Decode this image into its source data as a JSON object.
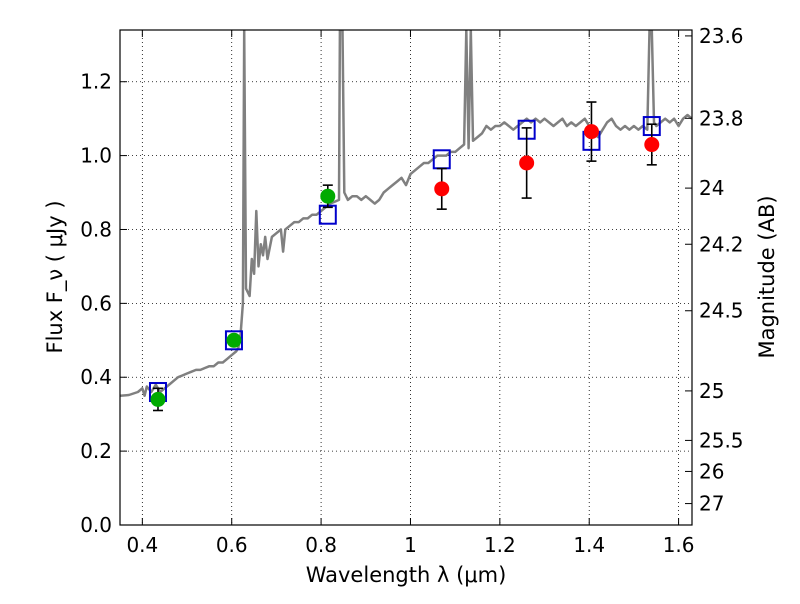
{
  "chart_data": {
    "type": "scatter",
    "xlabel": "Wavelength  λ (μm)",
    "ylabel": "Flux  F_ν  ( μJy )",
    "ylabel_right": "Magnitude (AB)",
    "xlim": [
      0.35,
      1.63
    ],
    "ylim": [
      0.0,
      1.34
    ],
    "grid": true,
    "x_ticks": [
      0.4,
      0.6,
      0.8,
      1.0,
      1.2,
      1.4,
      1.6
    ],
    "x_tick_labels": [
      "0.4",
      "0.6",
      "0.8",
      "1",
      "1.2",
      "1.4",
      "1.6"
    ],
    "y_ticks": [
      0.0,
      0.2,
      0.4,
      0.6,
      0.8,
      1.0,
      1.2
    ],
    "y_tick_labels": [
      "0.0",
      "0.2",
      "0.4",
      "0.6",
      "0.8",
      "1.0",
      "1.2"
    ],
    "right_ticks": [
      {
        "label": "23.6",
        "flux": 1.324
      },
      {
        "label": "23.8",
        "flux": 1.101
      },
      {
        "label": "24",
        "flux": 0.912
      },
      {
        "label": "24.2",
        "flux": 0.76
      },
      {
        "label": "24.5",
        "flux": 0.58
      },
      {
        "label": "25",
        "flux": 0.363
      },
      {
        "label": "25.5",
        "flux": 0.229
      },
      {
        "label": "26",
        "flux": 0.145
      },
      {
        "label": "27",
        "flux": 0.058
      }
    ],
    "series": [
      {
        "kind": "line",
        "color": "#808080",
        "points": [
          [
            0.35,
            0.35
          ],
          [
            0.37,
            0.352
          ],
          [
            0.39,
            0.36
          ],
          [
            0.4,
            0.37
          ],
          [
            0.405,
            0.35
          ],
          [
            0.41,
            0.375
          ],
          [
            0.42,
            0.36
          ],
          [
            0.43,
            0.38
          ],
          [
            0.44,
            0.36
          ],
          [
            0.45,
            0.37
          ],
          [
            0.46,
            0.38
          ],
          [
            0.47,
            0.39
          ],
          [
            0.48,
            0.4
          ],
          [
            0.49,
            0.405
          ],
          [
            0.5,
            0.41
          ],
          [
            0.51,
            0.415
          ],
          [
            0.52,
            0.42
          ],
          [
            0.53,
            0.42
          ],
          [
            0.54,
            0.425
          ],
          [
            0.55,
            0.43
          ],
          [
            0.56,
            0.43
          ],
          [
            0.57,
            0.44
          ],
          [
            0.58,
            0.44
          ],
          [
            0.59,
            0.45
          ],
          [
            0.6,
            0.46
          ],
          [
            0.61,
            0.47
          ],
          [
            0.615,
            0.48
          ],
          [
            0.62,
            0.52
          ],
          [
            0.625,
            0.6
          ],
          [
            0.628,
            1.34
          ],
          [
            0.632,
            0.64
          ],
          [
            0.64,
            0.62
          ],
          [
            0.645,
            0.72
          ],
          [
            0.65,
            0.68
          ],
          [
            0.655,
            0.85
          ],
          [
            0.66,
            0.7
          ],
          [
            0.665,
            0.76
          ],
          [
            0.67,
            0.73
          ],
          [
            0.675,
            0.78
          ],
          [
            0.68,
            0.72
          ],
          [
            0.69,
            0.78
          ],
          [
            0.7,
            0.79
          ],
          [
            0.71,
            0.8
          ],
          [
            0.715,
            0.74
          ],
          [
            0.72,
            0.8
          ],
          [
            0.73,
            0.81
          ],
          [
            0.74,
            0.82
          ],
          [
            0.75,
            0.82
          ],
          [
            0.76,
            0.83
          ],
          [
            0.77,
            0.83
          ],
          [
            0.78,
            0.84
          ],
          [
            0.79,
            0.84
          ],
          [
            0.8,
            0.85
          ],
          [
            0.81,
            0.86
          ],
          [
            0.82,
            0.87
          ],
          [
            0.83,
            0.875
          ],
          [
            0.84,
            0.88
          ],
          [
            0.842,
            1.34
          ],
          [
            0.848,
            1.34
          ],
          [
            0.852,
            0.9
          ],
          [
            0.86,
            0.88
          ],
          [
            0.87,
            0.89
          ],
          [
            0.88,
            0.89
          ],
          [
            0.89,
            0.88
          ],
          [
            0.9,
            0.89
          ],
          [
            0.91,
            0.88
          ],
          [
            0.92,
            0.87
          ],
          [
            0.93,
            0.88
          ],
          [
            0.94,
            0.9
          ],
          [
            0.95,
            0.91
          ],
          [
            0.96,
            0.92
          ],
          [
            0.97,
            0.93
          ],
          [
            0.98,
            0.94
          ],
          [
            0.99,
            0.92
          ],
          [
            1.0,
            0.95
          ],
          [
            1.01,
            0.96
          ],
          [
            1.02,
            0.97
          ],
          [
            1.03,
            0.98
          ],
          [
            1.04,
            0.98
          ],
          [
            1.05,
            0.99
          ],
          [
            1.06,
            1.0
          ],
          [
            1.07,
            1.0
          ],
          [
            1.08,
            1.0
          ],
          [
            1.09,
            1.01
          ],
          [
            1.1,
            1.01
          ],
          [
            1.11,
            1.02
          ],
          [
            1.12,
            1.03
          ],
          [
            1.125,
            1.34
          ],
          [
            1.13,
            1.02
          ],
          [
            1.135,
            1.34
          ],
          [
            1.14,
            1.04
          ],
          [
            1.15,
            1.05
          ],
          [
            1.16,
            1.06
          ],
          [
            1.17,
            1.08
          ],
          [
            1.18,
            1.07
          ],
          [
            1.19,
            1.08
          ],
          [
            1.2,
            1.08
          ],
          [
            1.21,
            1.09
          ],
          [
            1.22,
            1.08
          ],
          [
            1.23,
            1.07
          ],
          [
            1.24,
            1.08
          ],
          [
            1.25,
            1.09
          ],
          [
            1.26,
            1.1
          ],
          [
            1.27,
            1.09
          ],
          [
            1.28,
            1.1
          ],
          [
            1.29,
            1.09
          ],
          [
            1.3,
            1.1
          ],
          [
            1.31,
            1.09
          ],
          [
            1.32,
            1.08
          ],
          [
            1.33,
            1.09
          ],
          [
            1.34,
            1.1
          ],
          [
            1.35,
            1.08
          ],
          [
            1.36,
            1.09
          ],
          [
            1.37,
            1.08
          ],
          [
            1.38,
            1.09
          ],
          [
            1.39,
            1.1
          ],
          [
            1.4,
            1.08
          ],
          [
            1.41,
            1.06
          ],
          [
            1.42,
            1.05
          ],
          [
            1.43,
            1.07
          ],
          [
            1.44,
            1.09
          ],
          [
            1.45,
            1.1
          ],
          [
            1.46,
            1.08
          ],
          [
            1.47,
            1.07
          ],
          [
            1.48,
            1.08
          ],
          [
            1.49,
            1.07
          ],
          [
            1.5,
            1.08
          ],
          [
            1.51,
            1.07
          ],
          [
            1.52,
            1.08
          ],
          [
            1.53,
            1.07
          ],
          [
            1.535,
            1.34
          ],
          [
            1.54,
            1.34
          ],
          [
            1.545,
            1.09
          ],
          [
            1.55,
            1.08
          ],
          [
            1.56,
            1.09
          ],
          [
            1.57,
            1.1
          ],
          [
            1.58,
            1.09
          ],
          [
            1.59,
            1.1
          ],
          [
            1.6,
            1.08
          ],
          [
            1.61,
            1.1
          ],
          [
            1.62,
            1.11
          ],
          [
            1.63,
            1.1
          ]
        ]
      },
      {
        "kind": "squares",
        "color": "#0000cc",
        "points": [
          [
            0.435,
            0.36
          ],
          [
            0.605,
            0.5
          ],
          [
            0.815,
            0.84
          ],
          [
            1.07,
            0.99
          ],
          [
            1.26,
            1.07
          ],
          [
            1.405,
            1.04
          ],
          [
            1.54,
            1.08
          ]
        ]
      },
      {
        "kind": "points",
        "color": "#00aa00",
        "points": [
          {
            "x": 0.435,
            "y": 0.34,
            "err": 0.03
          },
          {
            "x": 0.605,
            "y": 0.5,
            "err": 0.0
          },
          {
            "x": 0.815,
            "y": 0.89,
            "err": 0.03
          }
        ]
      },
      {
        "kind": "points",
        "color": "#ff0000",
        "points": [
          {
            "x": 1.07,
            "y": 0.91,
            "err": 0.055
          },
          {
            "x": 1.26,
            "y": 0.98,
            "err": 0.095
          },
          {
            "x": 1.405,
            "y": 1.065,
            "err": 0.08
          },
          {
            "x": 1.54,
            "y": 1.03,
            "err": 0.055
          }
        ]
      }
    ]
  }
}
